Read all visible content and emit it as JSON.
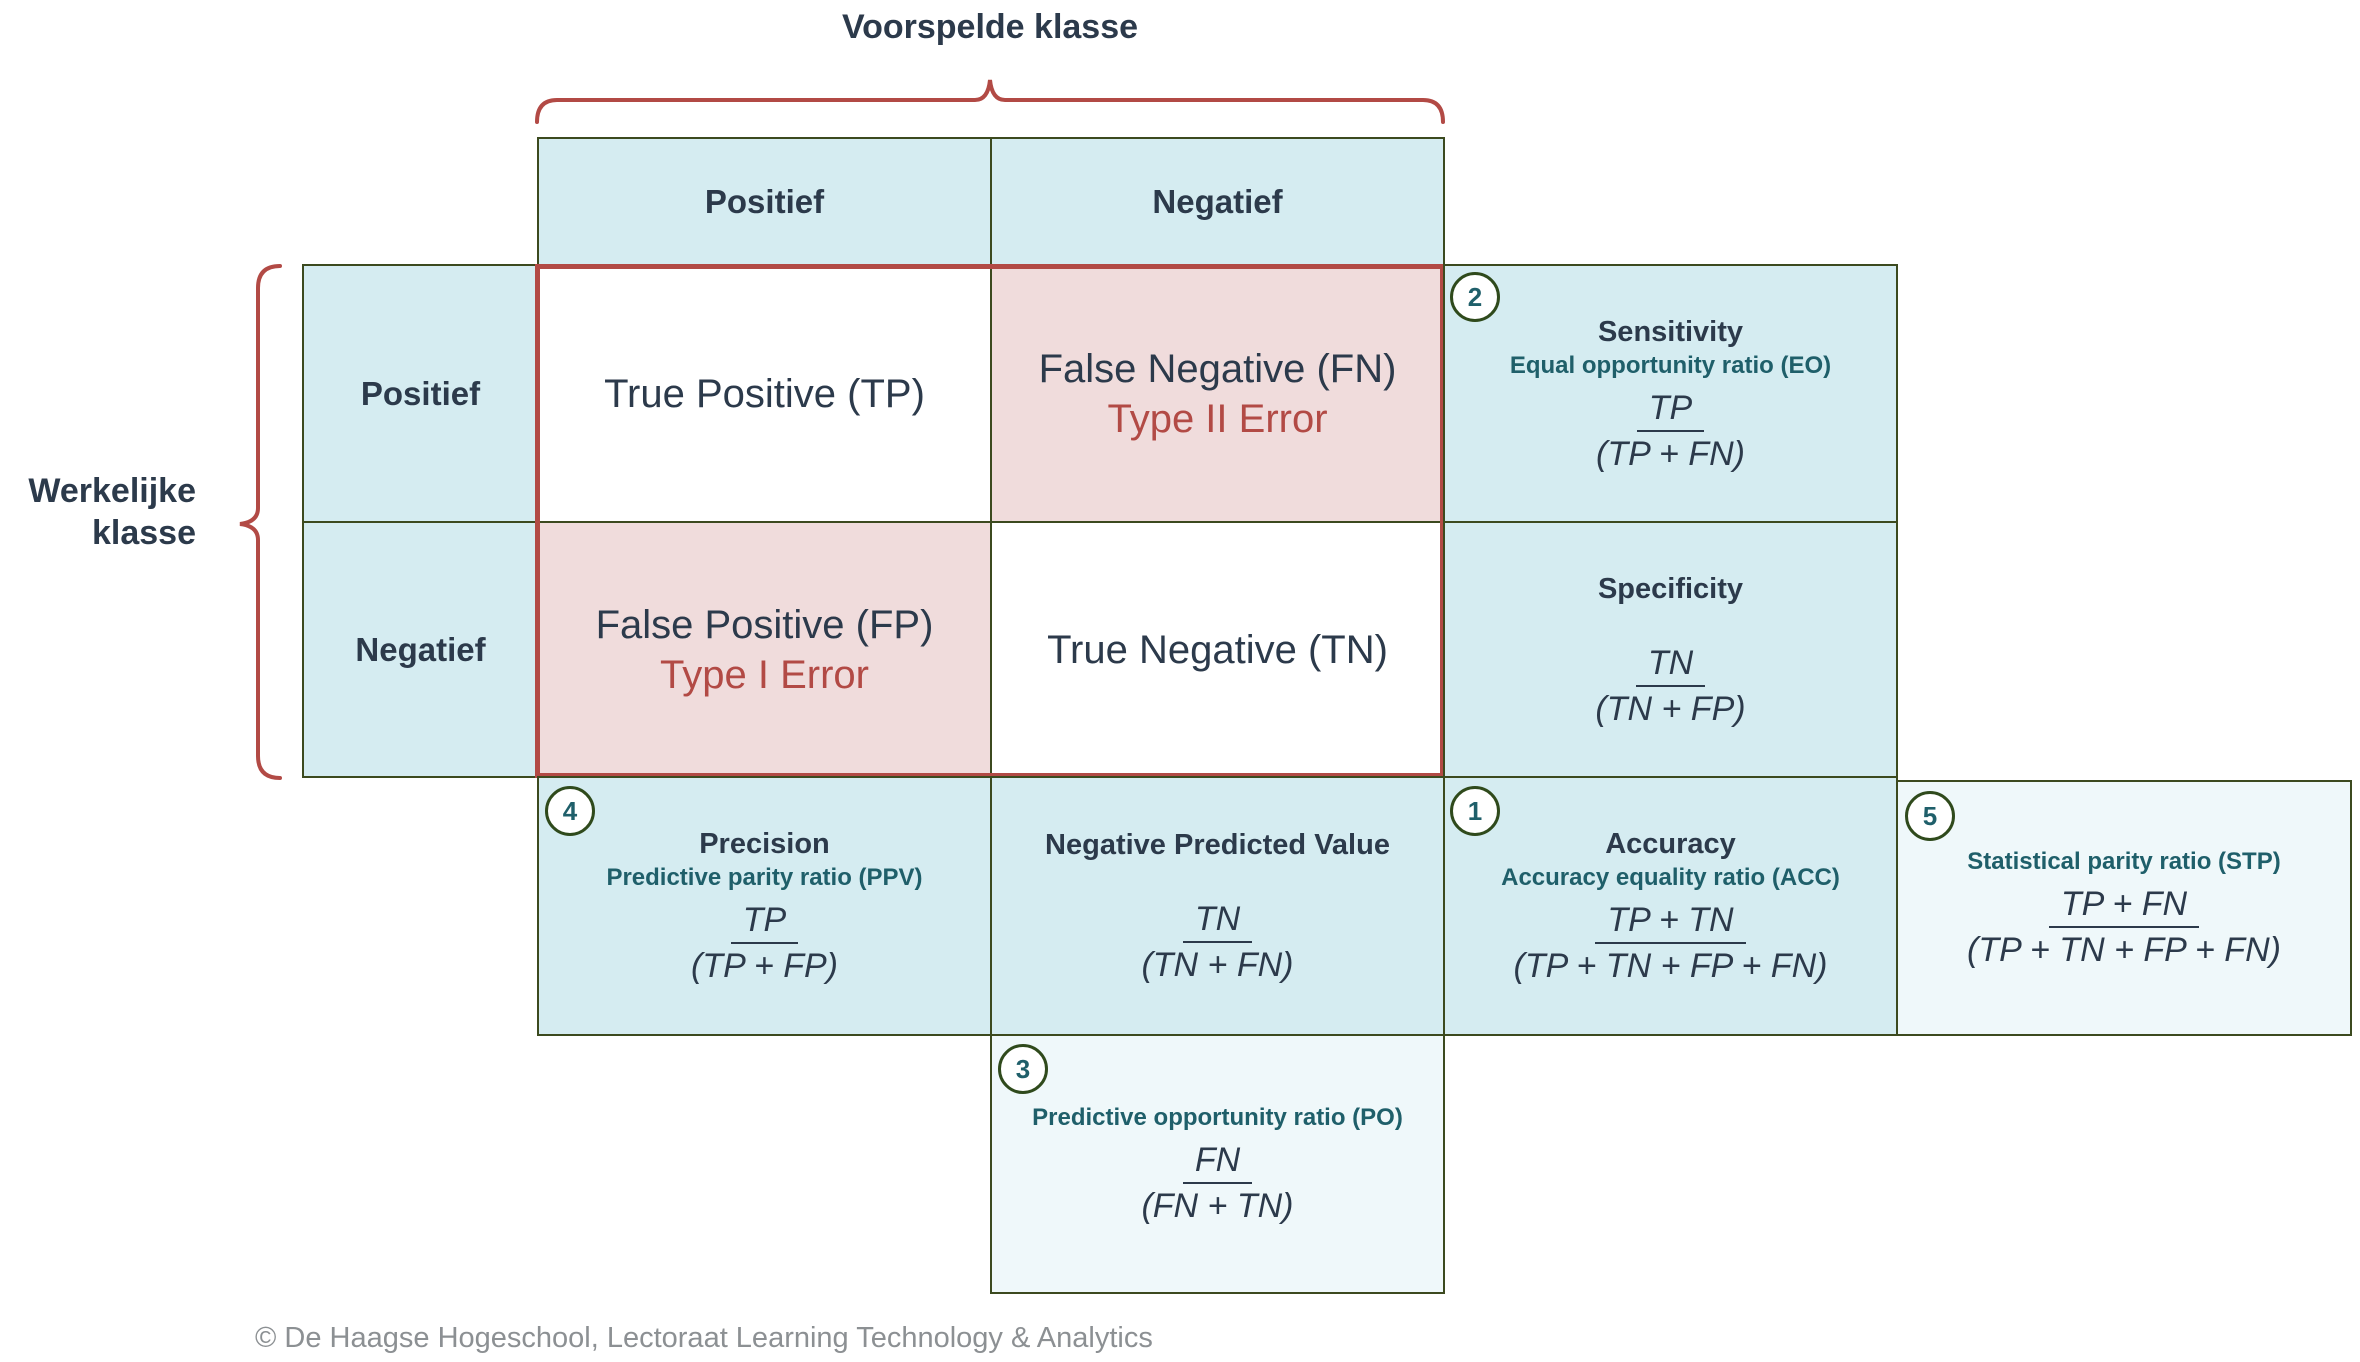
{
  "axes": {
    "predicted_title": "Voorspelde klasse",
    "actual_title_line1": "Werkelijke",
    "actual_title_line2": "klasse"
  },
  "headers": {
    "predicted_positive": "Positief",
    "predicted_negative": "Negatief",
    "actual_positive": "Positief",
    "actual_negative": "Negatief"
  },
  "matrix": {
    "tp": "True Positive (TP)",
    "fn": "False Negative (FN)",
    "fn_error": "Type II Error",
    "fp": "False Positive (FP)",
    "fp_error": "Type I Error",
    "tn": "True Negative (TN)"
  },
  "metrics": {
    "sensitivity": {
      "badge": "2",
      "title": "Sensitivity",
      "subtitle": "Equal opportunity ratio (EO)",
      "numerator": "TP",
      "denominator": "(TP + FN)"
    },
    "specificity": {
      "title": "Specificity",
      "numerator": "TN",
      "denominator": "(TN + FP)"
    },
    "precision": {
      "badge": "4",
      "title": "Precision",
      "subtitle": "Predictive parity ratio (PPV)",
      "numerator": "TP",
      "denominator": "(TP + FP)"
    },
    "npv": {
      "title": "Negative Predicted Value",
      "numerator": "TN",
      "denominator": "(TN + FN)"
    },
    "accuracy": {
      "badge": "1",
      "title": "Accuracy",
      "subtitle": "Accuracy equality ratio (ACC)",
      "numerator": "TP + TN",
      "denominator": "(TP + TN + FP + FN)"
    },
    "statistical_parity": {
      "badge": "5",
      "subtitle": "Statistical parity ratio (STP)",
      "numerator": "TP + FN",
      "denominator": "(TP + TN + FP + FN)"
    },
    "predictive_opportunity": {
      "badge": "3",
      "subtitle": "Predictive opportunity ratio (PO)",
      "numerator": "FN",
      "denominator": "(FN + TN)"
    }
  },
  "colors": {
    "cell_blue": "#d5ecf1",
    "cell_light": "#eff8fa",
    "error_pink": "#f0dcdc",
    "accent_red": "#b24a45",
    "border_dark": "#3c4a1f",
    "subtitle_teal": "#1f5f6a"
  },
  "footer": "© De Haagse Hogeschool, Lectoraat Learning Technology & Analytics"
}
